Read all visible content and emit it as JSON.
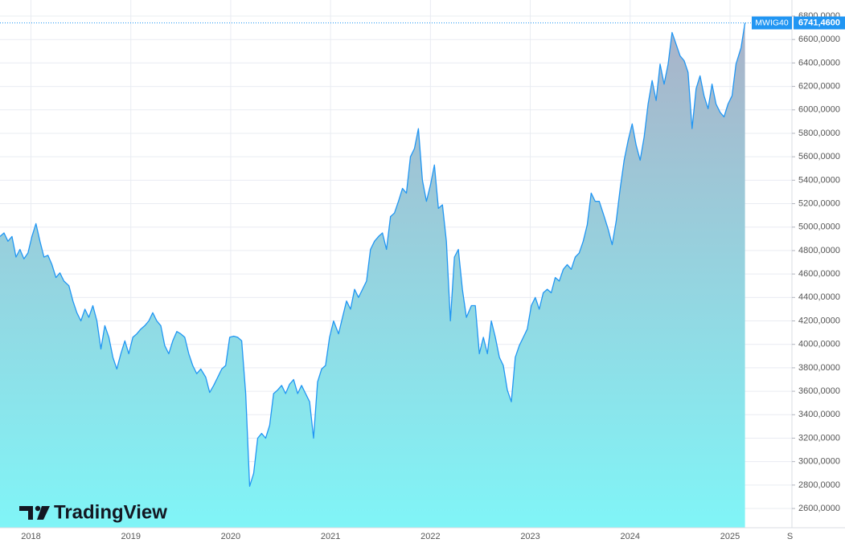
{
  "chart_data": {
    "type": "area",
    "watermark": "TradingView",
    "x": [
      2017.69,
      2017.73,
      2017.77,
      2017.81,
      2017.85,
      2017.89,
      2017.93,
      2017.97,
      2018.01,
      2018.05,
      2018.09,
      2018.13,
      2018.17,
      2018.21,
      2018.25,
      2018.29,
      2018.33,
      2018.38,
      2018.42,
      2018.46,
      2018.5,
      2018.54,
      2018.58,
      2018.62,
      2018.66,
      2018.7,
      2018.74,
      2018.78,
      2018.82,
      2018.86,
      2018.9,
      2018.94,
      2018.98,
      2019.02,
      2019.06,
      2019.1,
      2019.14,
      2019.18,
      2019.22,
      2019.26,
      2019.3,
      2019.34,
      2019.38,
      2019.42,
      2019.46,
      2019.5,
      2019.54,
      2019.58,
      2019.62,
      2019.66,
      2019.7,
      2019.75,
      2019.79,
      2019.83,
      2019.87,
      2019.91,
      2019.95,
      2019.99,
      2020.03,
      2020.07,
      2020.11,
      2020.15,
      2020.19,
      2020.23,
      2020.27,
      2020.31,
      2020.35,
      2020.39,
      2020.43,
      2020.47,
      2020.51,
      2020.55,
      2020.59,
      2020.63,
      2020.67,
      2020.71,
      2020.75,
      2020.79,
      2020.83,
      2020.87,
      2020.91,
      2020.95,
      2020.99,
      2021.03,
      2021.08,
      2021.12,
      2021.16,
      2021.2,
      2021.24,
      2021.28,
      2021.32,
      2021.36,
      2021.4,
      2021.44,
      2021.48,
      2021.52,
      2021.56,
      2021.6,
      2021.64,
      2021.68,
      2021.72,
      2021.76,
      2021.8,
      2021.84,
      2021.88,
      2021.92,
      2021.96,
      2022.0,
      2022.04,
      2022.08,
      2022.12,
      2022.16,
      2022.2,
      2022.24,
      2022.28,
      2022.32,
      2022.36,
      2022.41,
      2022.45,
      2022.49,
      2022.53,
      2022.57,
      2022.61,
      2022.65,
      2022.69,
      2022.73,
      2022.77,
      2022.81,
      2022.85,
      2022.89,
      2022.93,
      2022.97,
      2023.01,
      2023.05,
      2023.09,
      2023.13,
      2023.17,
      2023.21,
      2023.25,
      2023.29,
      2023.33,
      2023.37,
      2023.41,
      2023.45,
      2023.49,
      2023.53,
      2023.57,
      2023.61,
      2023.65,
      2023.69,
      2023.74,
      2023.78,
      2023.82,
      2023.86,
      2023.9,
      2023.94,
      2023.98,
      2024.02,
      2024.06,
      2024.1,
      2024.14,
      2024.18,
      2024.22,
      2024.26,
      2024.3,
      2024.34,
      2024.38,
      2024.42,
      2024.46,
      2024.5,
      2024.54,
      2024.58,
      2024.62,
      2024.66,
      2024.7,
      2024.74,
      2024.78,
      2024.82,
      2024.86,
      2024.9,
      2024.94,
      2024.98,
      2025.02,
      2025.06,
      2025.11,
      2025.15
    ],
    "series": [
      {
        "name": "MWIG40",
        "color": "#2196f3",
        "values": [
          4920,
          4950,
          4880,
          4920,
          4745,
          4810,
          4730,
          4780,
          4920,
          5030,
          4880,
          4745,
          4760,
          4680,
          4570,
          4610,
          4540,
          4500,
          4370,
          4270,
          4200,
          4300,
          4230,
          4330,
          4200,
          3960,
          4160,
          4060,
          3890,
          3790,
          3920,
          4030,
          3920,
          4060,
          4090,
          4130,
          4160,
          4200,
          4270,
          4200,
          4160,
          3990,
          3920,
          4030,
          4110,
          4090,
          4060,
          3920,
          3820,
          3750,
          3790,
          3720,
          3590,
          3650,
          3720,
          3790,
          3820,
          4060,
          4070,
          4060,
          4030,
          3580,
          2790,
          2900,
          3200,
          3240,
          3200,
          3310,
          3580,
          3610,
          3650,
          3580,
          3660,
          3700,
          3580,
          3650,
          3580,
          3510,
          3200,
          3680,
          3790,
          3820,
          4060,
          4200,
          4090,
          4230,
          4370,
          4300,
          4470,
          4400,
          4470,
          4540,
          4810,
          4880,
          4920,
          4950,
          4810,
          5090,
          5120,
          5220,
          5330,
          5290,
          5600,
          5670,
          5840,
          5400,
          5220,
          5360,
          5530,
          5160,
          5190,
          4880,
          4200,
          4745,
          4810,
          4470,
          4230,
          4330,
          4330,
          3920,
          4060,
          3920,
          4200,
          4060,
          3890,
          3820,
          3610,
          3510,
          3890,
          3990,
          4060,
          4130,
          4330,
          4400,
          4300,
          4440,
          4470,
          4440,
          4570,
          4540,
          4640,
          4680,
          4640,
          4745,
          4780,
          4880,
          5020,
          5290,
          5220,
          5220,
          5090,
          4980,
          4850,
          5050,
          5330,
          5570,
          5740,
          5880,
          5700,
          5570,
          5770,
          6050,
          6250,
          6080,
          6390,
          6220,
          6390,
          6660,
          6560,
          6460,
          6420,
          6320,
          5840,
          6180,
          6290,
          6120,
          6010,
          6220,
          6050,
          5980,
          5940,
          6050,
          6120,
          6390,
          6530,
          6741.46
        ]
      }
    ],
    "last_price": {
      "value": 6741.46,
      "label": "6741,4600"
    },
    "xlim": [
      2017.69,
      2025.62
    ],
    "xticks": [
      2018,
      2019,
      2020,
      2021,
      2022,
      2023,
      2024,
      2025,
      {
        "value": 2025.6,
        "label": "S"
      }
    ],
    "ylim": [
      2436,
      6937
    ],
    "yticks": [
      {
        "value": 2600,
        "label": "2600,0000"
      },
      {
        "value": 2800,
        "label": "2800,0000"
      },
      {
        "value": 3000,
        "label": "3000,0000"
      },
      {
        "value": 3200,
        "label": "3200,0000"
      },
      {
        "value": 3400,
        "label": "3400,0000"
      },
      {
        "value": 3600,
        "label": "3600,0000"
      },
      {
        "value": 3800,
        "label": "3800,0000"
      },
      {
        "value": 4000,
        "label": "4000,0000"
      },
      {
        "value": 4200,
        "label": "4200,0000"
      },
      {
        "value": 4400,
        "label": "4400,0000"
      },
      {
        "value": 4600,
        "label": "4600,0000"
      },
      {
        "value": 4800,
        "label": "4800,0000"
      },
      {
        "value": 5000,
        "label": "5000,0000"
      },
      {
        "value": 5200,
        "label": "5200,0000"
      },
      {
        "value": 5400,
        "label": "5400,0000"
      },
      {
        "value": 5600,
        "label": "5600,0000"
      },
      {
        "value": 5800,
        "label": "5800,0000"
      },
      {
        "value": 6000,
        "label": "6000,0000"
      },
      {
        "value": 6200,
        "label": "6200,0000"
      },
      {
        "value": 6400,
        "label": "6400,0000"
      },
      {
        "value": 6600,
        "label": "6600,0000"
      },
      {
        "value": 6800,
        "label": "6800,0000"
      }
    ],
    "grid": true
  }
}
